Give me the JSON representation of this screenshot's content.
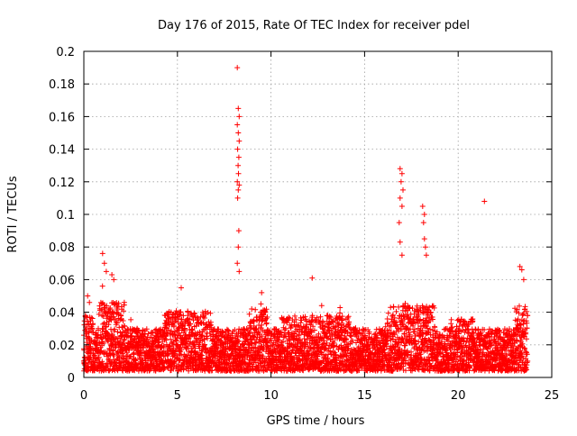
{
  "chart_data": {
    "type": "scatter",
    "title": "Day 176 of 2015, Rate Of TEC Index for receiver pdel",
    "xlabel": "GPS time / hours",
    "ylabel": "ROTI / TECUs",
    "xlim": [
      0,
      25
    ],
    "ylim": [
      0,
      0.2
    ],
    "xticks": [
      "0",
      "5",
      "10",
      "15",
      "20",
      "25"
    ],
    "yticks": [
      "0",
      "0.02",
      "0.04",
      "0.06",
      "0.08",
      "0.1",
      "0.12",
      "0.14",
      "0.16",
      "0.18",
      "0.2"
    ],
    "grid": true,
    "marker": "+",
    "color": "#ff0000",
    "series": [
      {
        "x": [
          8.2,
          8.25,
          8.3,
          8.2,
          8.25,
          8.3,
          8.22,
          8.28,
          8.24,
          8.26,
          8.2,
          8.3,
          8.25,
          8.22,
          8.28,
          8.25,
          8.2,
          8.3,
          16.9,
          17.0,
          16.95,
          17.05,
          16.9,
          17.0,
          16.85,
          16.9,
          17.0,
          18.1,
          18.2,
          18.15,
          18.2,
          18.25,
          18.3,
          21.4,
          1.0,
          1.1,
          1.2,
          1.5,
          1.6,
          23.3,
          23.4,
          23.5,
          0.2,
          0.3,
          12.2,
          9.5,
          5.2
        ],
        "y": [
          0.19,
          0.165,
          0.16,
          0.155,
          0.15,
          0.145,
          0.14,
          0.135,
          0.13,
          0.125,
          0.12,
          0.118,
          0.115,
          0.11,
          0.09,
          0.08,
          0.07,
          0.065,
          0.128,
          0.125,
          0.12,
          0.115,
          0.11,
          0.105,
          0.095,
          0.083,
          0.075,
          0.105,
          0.1,
          0.095,
          0.085,
          0.08,
          0.075,
          0.108,
          0.076,
          0.07,
          0.065,
          0.063,
          0.06,
          0.068,
          0.066,
          0.06,
          0.05,
          0.046,
          0.061,
          0.052,
          0.055
        ]
      }
    ]
  }
}
